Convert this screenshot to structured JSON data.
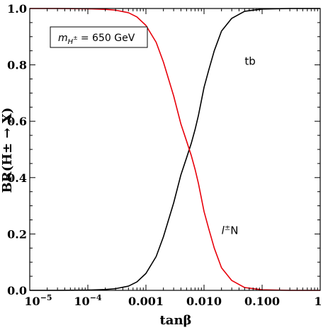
{
  "chart_data": {
    "type": "line",
    "title": "",
    "xlabel": "tanβ",
    "ylabel": "BR(H± → X)",
    "x_scale": "log",
    "xlim": [
      1e-05,
      1
    ],
    "ylim": [
      0,
      1
    ],
    "x_ticks": [
      {
        "value": 1e-05,
        "base": "10",
        "exp": "−5"
      },
      {
        "value": 0.0001,
        "base": "10",
        "exp": "−4"
      },
      {
        "value": 0.001,
        "label": "0.001"
      },
      {
        "value": 0.01,
        "label": "0.010"
      },
      {
        "value": 0.1,
        "label": "0.100"
      },
      {
        "value": 1,
        "label": "1"
      }
    ],
    "y_ticks": [
      {
        "value": 0,
        "label": "0.0"
      },
      {
        "value": 0.2,
        "label": "0.2"
      },
      {
        "value": 0.4,
        "label": "0.4"
      },
      {
        "value": 0.6,
        "label": "0.6"
      },
      {
        "value": 0.8,
        "label": "0.8"
      },
      {
        "value": 1,
        "label": "1.0"
      }
    ],
    "grid": false,
    "annotation": {
      "mass_symbol": "m",
      "mass_sub": "H",
      "mass_sub_sup": "±",
      "mass_value": "= 650 GeV",
      "position": "top-left"
    },
    "series": [
      {
        "name": "tb",
        "color": "#000000",
        "x": [
          1e-05,
          3e-05,
          0.0001,
          0.0002,
          0.0003,
          0.0005,
          0.0007,
          0.001,
          0.0015,
          0.002,
          0.003,
          0.004,
          0.005,
          0.006,
          0.007,
          0.008,
          0.01,
          0.012,
          0.015,
          0.02,
          0.03,
          0.05,
          0.1,
          0.3,
          1
        ],
        "values": [
          0.0,
          0.0,
          0.001,
          0.003,
          0.006,
          0.015,
          0.03,
          0.06,
          0.12,
          0.19,
          0.31,
          0.41,
          0.47,
          0.52,
          0.57,
          0.62,
          0.72,
          0.78,
          0.85,
          0.92,
          0.965,
          0.99,
          0.998,
          1.0,
          1.0
        ]
      },
      {
        "name": "l±N",
        "color": "#e8000b",
        "x": [
          1e-05,
          3e-05,
          0.0001,
          0.0002,
          0.0003,
          0.0005,
          0.0007,
          0.001,
          0.0015,
          0.002,
          0.003,
          0.004,
          0.005,
          0.006,
          0.007,
          0.008,
          0.01,
          0.012,
          0.015,
          0.02,
          0.03,
          0.05,
          0.1,
          0.3,
          1
        ],
        "values": [
          1.0,
          1.0,
          0.999,
          0.997,
          0.994,
          0.985,
          0.97,
          0.94,
          0.88,
          0.81,
          0.69,
          0.59,
          0.53,
          0.48,
          0.43,
          0.38,
          0.28,
          0.22,
          0.15,
          0.08,
          0.035,
          0.01,
          0.002,
          0.0,
          0.0
        ]
      }
    ],
    "curve_labels": [
      {
        "series": 0,
        "base": "tb",
        "sup": "",
        "x": 0.05,
        "y": 0.8
      },
      {
        "series": 1,
        "base": "N",
        "prefix": "l",
        "sup": "±",
        "x": 0.02,
        "y": 0.2
      }
    ]
  }
}
